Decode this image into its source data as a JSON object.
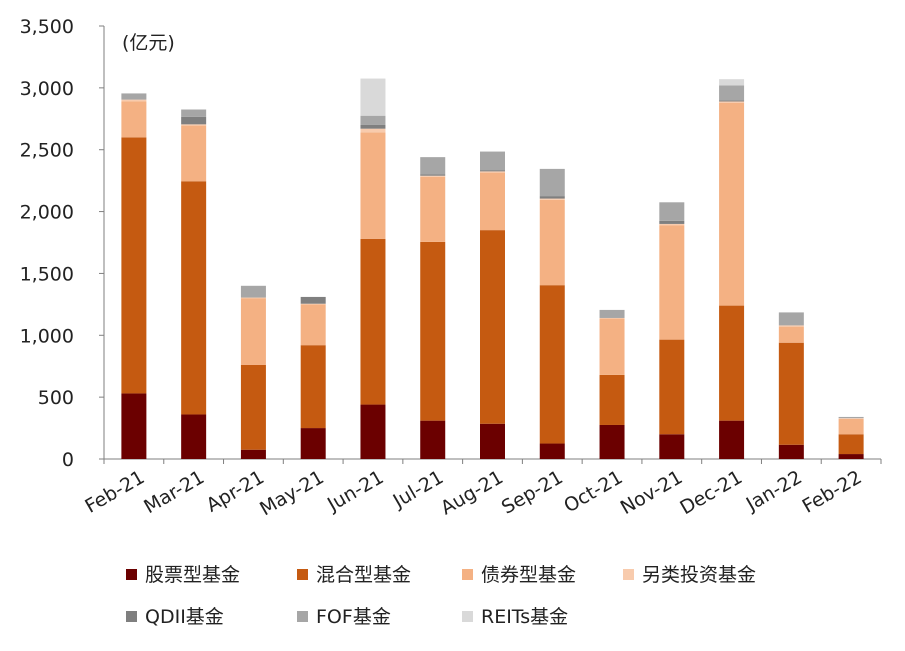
{
  "chart_data": {
    "type": "bar",
    "stacked": true,
    "unit_label": "(亿元)",
    "categories": [
      "Feb-21",
      "Mar-21",
      "Apr-21",
      "May-21",
      "Jun-21",
      "Jul-21",
      "Aug-21",
      "Sep-21",
      "Oct-21",
      "Nov-21",
      "Dec-21",
      "Jan-22",
      "Feb-22"
    ],
    "ylim": [
      0,
      3500
    ],
    "yticks": [
      0,
      500,
      1000,
      1500,
      2000,
      2500,
      3000,
      3500
    ],
    "ytick_labels": [
      "0",
      "500",
      "1,000",
      "1,500",
      "2,000",
      "2,500",
      "3,000",
      "3,500"
    ],
    "grid": false,
    "legend_position": "bottom",
    "series": [
      {
        "name": "股票型基金",
        "color": "#6b0000",
        "values": [
          530,
          360,
          75,
          250,
          440,
          310,
          285,
          125,
          275,
          200,
          310,
          115,
          40
        ]
      },
      {
        "name": "混合型基金",
        "color": "#c55a11",
        "values": [
          2070,
          1885,
          685,
          670,
          1340,
          1445,
          1565,
          1280,
          405,
          765,
          930,
          825,
          160
        ]
      },
      {
        "name": "债券型基金",
        "color": "#f4b183",
        "values": [
          290,
          450,
          540,
          330,
          860,
          525,
          465,
          690,
          455,
          925,
          1640,
          130,
          125
        ]
      },
      {
        "name": "另类投资基金",
        "color": "#f8cbad",
        "values": [
          15,
          10,
          5,
          5,
          30,
          10,
          10,
          10,
          5,
          10,
          10,
          10,
          5
        ]
      },
      {
        "name": "QDII基金",
        "color": "#7f7f7f",
        "values": [
          0,
          60,
          0,
          55,
          30,
          10,
          10,
          20,
          0,
          25,
          10,
          0,
          0
        ]
      },
      {
        "name": "FOF基金",
        "color": "#a6a6a6",
        "values": [
          50,
          60,
          95,
          0,
          75,
          140,
          150,
          220,
          65,
          150,
          120,
          105,
          10
        ]
      },
      {
        "name": "REITs基金",
        "color": "#d9d9d9",
        "values": [
          0,
          0,
          0,
          0,
          300,
          0,
          0,
          0,
          0,
          0,
          50,
          0,
          0
        ]
      }
    ]
  }
}
